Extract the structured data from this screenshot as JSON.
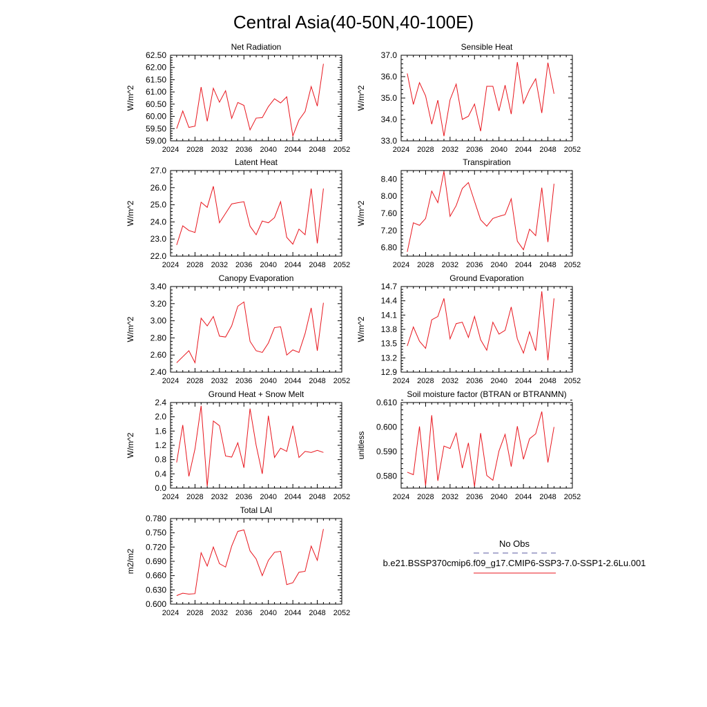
{
  "figure": {
    "title": "Central Asia(40-50N,40-100E)"
  },
  "legend": {
    "obs_label": "No Obs",
    "obs_color": "#5a5aa0",
    "case_label": "b.e21.BSSP370cmip6.f09_g17.CMIP6-SSP3-7.0-SSP1-2.6Lu.001",
    "case_color": "#e8141c"
  },
  "chart_data": [
    {
      "type": "line",
      "title": "Net Radiation",
      "ylabel": "W/m^2",
      "xlim": [
        2024,
        2052
      ],
      "xticks": [
        2024,
        2028,
        2032,
        2036,
        2040,
        2044,
        2048,
        2052
      ],
      "ylim": [
        59.0,
        62.5
      ],
      "yticks": [
        "59.00",
        "59.50",
        "60.00",
        "60.50",
        "61.00",
        "61.50",
        "62.00",
        "62.50"
      ],
      "x": [
        2025,
        2026,
        2027,
        2028,
        2029,
        2030,
        2031,
        2032,
        2033,
        2034,
        2035,
        2036,
        2037,
        2038,
        2039,
        2040,
        2041,
        2042,
        2043,
        2044,
        2045,
        2046,
        2047,
        2048,
        2049
      ],
      "series": [
        {
          "color": "#e8141c",
          "values": [
            59.5,
            60.22,
            59.55,
            59.6,
            61.2,
            59.8,
            61.15,
            60.58,
            61.05,
            59.92,
            60.57,
            60.45,
            59.45,
            59.93,
            59.95,
            60.4,
            60.72,
            60.55,
            60.8,
            59.2,
            59.85,
            60.2,
            61.22,
            60.42,
            62.15
          ]
        }
      ]
    },
    {
      "type": "line",
      "title": "Sensible Heat",
      "ylabel": "W/m^2",
      "xlim": [
        2024,
        2052
      ],
      "xticks": [
        2024,
        2028,
        2032,
        2036,
        2040,
        2044,
        2048,
        2052
      ],
      "ylim": [
        33.0,
        37.0
      ],
      "yticks": [
        "33.0",
        "34.0",
        "35.0",
        "36.0",
        "37.0"
      ],
      "x": [
        2025,
        2026,
        2027,
        2028,
        2029,
        2030,
        2031,
        2032,
        2033,
        2034,
        2035,
        2036,
        2037,
        2038,
        2039,
        2040,
        2041,
        2042,
        2043,
        2044,
        2045,
        2046,
        2047,
        2048,
        2049
      ],
      "series": [
        {
          "color": "#e8141c",
          "values": [
            36.15,
            34.7,
            35.72,
            35.1,
            33.78,
            34.9,
            33.22,
            34.92,
            35.65,
            34.0,
            34.15,
            34.72,
            33.45,
            35.55,
            35.55,
            34.4,
            35.6,
            34.25,
            36.68,
            34.75,
            35.4,
            35.9,
            34.3,
            36.65,
            35.2
          ]
        }
      ]
    },
    {
      "type": "line",
      "title": "Latent Heat",
      "ylabel": "W/m^2",
      "xlim": [
        2024,
        2052
      ],
      "xticks": [
        2024,
        2028,
        2032,
        2036,
        2040,
        2044,
        2048,
        2052
      ],
      "ylim": [
        22.0,
        27.0
      ],
      "yticks": [
        "22.0",
        "23.0",
        "24.0",
        "25.0",
        "26.0",
        "27.0"
      ],
      "x": [
        2025,
        2026,
        2027,
        2028,
        2029,
        2030,
        2031,
        2032,
        2033,
        2034,
        2035,
        2036,
        2037,
        2038,
        2039,
        2040,
        2041,
        2042,
        2043,
        2044,
        2045,
        2046,
        2047,
        2048,
        2049
      ],
      "series": [
        {
          "color": "#e8141c",
          "values": [
            22.65,
            23.77,
            23.5,
            23.38,
            25.15,
            24.85,
            26.08,
            23.95,
            24.5,
            25.05,
            25.12,
            25.18,
            23.75,
            23.25,
            24.05,
            23.95,
            24.25,
            25.18,
            23.1,
            22.7,
            23.58,
            23.25,
            25.95,
            22.75,
            25.95
          ]
        }
      ]
    },
    {
      "type": "line",
      "title": "Transpiration",
      "ylabel": "W/m^2",
      "xlim": [
        2024,
        2052
      ],
      "xticks": [
        2024,
        2028,
        2032,
        2036,
        2040,
        2044,
        2048,
        2052
      ],
      "ylim": [
        6.6,
        8.6
      ],
      "yticks": [
        "6.80",
        "7.20",
        "7.60",
        "8.00",
        "8.40"
      ],
      "x": [
        2025,
        2026,
        2027,
        2028,
        2029,
        2030,
        2031,
        2032,
        2033,
        2034,
        2035,
        2036,
        2037,
        2038,
        2039,
        2040,
        2041,
        2042,
        2043,
        2044,
        2045,
        2046,
        2047,
        2048,
        2049
      ],
      "series": [
        {
          "color": "#e8141c",
          "values": [
            6.7,
            7.38,
            7.32,
            7.48,
            8.12,
            7.85,
            8.58,
            7.53,
            7.78,
            8.18,
            8.32,
            7.88,
            7.45,
            7.3,
            7.48,
            7.53,
            7.57,
            7.94,
            6.95,
            6.75,
            7.23,
            7.08,
            8.2,
            6.93,
            8.29
          ]
        }
      ]
    },
    {
      "type": "line",
      "title": "Canopy Evaporation",
      "ylabel": "W/m^2",
      "xlim": [
        2024,
        2052
      ],
      "xticks": [
        2024,
        2028,
        2032,
        2036,
        2040,
        2044,
        2048,
        2052
      ],
      "ylim": [
        2.4,
        3.4
      ],
      "yticks": [
        "2.40",
        "2.60",
        "2.80",
        "3.00",
        "3.20",
        "3.40"
      ],
      "x": [
        2025,
        2026,
        2027,
        2028,
        2029,
        2030,
        2031,
        2032,
        2033,
        2034,
        2035,
        2036,
        2037,
        2038,
        2039,
        2040,
        2041,
        2042,
        2043,
        2044,
        2045,
        2046,
        2047,
        2048,
        2049
      ],
      "series": [
        {
          "color": "#e8141c",
          "values": [
            2.51,
            2.58,
            2.65,
            2.51,
            3.03,
            2.94,
            3.05,
            2.82,
            2.81,
            2.94,
            3.17,
            3.22,
            2.76,
            2.65,
            2.63,
            2.74,
            2.92,
            2.93,
            2.6,
            2.66,
            2.63,
            2.85,
            3.15,
            2.65,
            3.21
          ]
        }
      ]
    },
    {
      "type": "line",
      "title": "Ground Evaporation",
      "ylabel": "W/m^2",
      "xlim": [
        2024,
        2052
      ],
      "xticks": [
        2024,
        2028,
        2032,
        2036,
        2040,
        2044,
        2048,
        2052
      ],
      "ylim": [
        12.9,
        14.7
      ],
      "yticks": [
        "12.9",
        "13.2",
        "13.5",
        "13.8",
        "14.1",
        "14.4",
        "14.7"
      ],
      "x": [
        2025,
        2026,
        2027,
        2028,
        2029,
        2030,
        2031,
        2032,
        2033,
        2034,
        2035,
        2036,
        2037,
        2038,
        2039,
        2040,
        2041,
        2042,
        2043,
        2044,
        2045,
        2046,
        2047,
        2048,
        2049
      ],
      "series": [
        {
          "color": "#e8141c",
          "values": [
            13.45,
            13.85,
            13.55,
            13.4,
            14.0,
            14.07,
            14.45,
            13.6,
            13.92,
            13.95,
            13.63,
            14.07,
            13.58,
            13.36,
            13.95,
            13.7,
            13.78,
            14.27,
            13.6,
            13.3,
            13.75,
            13.35,
            14.6,
            13.15,
            14.45
          ]
        }
      ]
    },
    {
      "type": "line",
      "title": "Ground Heat + Snow Melt",
      "ylabel": "W/m^2",
      "xlim": [
        2024,
        2052
      ],
      "xticks": [
        2024,
        2028,
        2032,
        2036,
        2040,
        2044,
        2048,
        2052
      ],
      "ylim": [
        0.0,
        2.4
      ],
      "yticks": [
        "0.0",
        "0.4",
        "0.8",
        "1.2",
        "1.6",
        "2.0",
        "2.4"
      ],
      "x": [
        2025,
        2026,
        2027,
        2028,
        2029,
        2030,
        2031,
        2032,
        2033,
        2034,
        2035,
        2036,
        2037,
        2038,
        2039,
        2040,
        2041,
        2042,
        2043,
        2044,
        2045,
        2046,
        2047,
        2048,
        2049
      ],
      "series": [
        {
          "color": "#e8141c",
          "values": [
            0.72,
            1.77,
            0.33,
            1.1,
            2.31,
            0.05,
            1.88,
            1.75,
            0.9,
            0.87,
            1.27,
            0.57,
            2.23,
            1.2,
            0.4,
            2.03,
            0.86,
            1.12,
            1.03,
            1.75,
            0.86,
            1.03,
            1.0,
            1.06,
            1.0
          ]
        }
      ]
    },
    {
      "type": "line",
      "title": "Soil moisture factor (BTRAN or BTRANMN)",
      "ylabel": "unitless",
      "xlim": [
        2024,
        2052
      ],
      "xticks": [
        2024,
        2028,
        2032,
        2036,
        2040,
        2044,
        2048,
        2052
      ],
      "ylim": [
        0.575,
        0.61
      ],
      "yticks": [
        "0.580",
        "0.590",
        "0.600",
        "0.610"
      ],
      "x": [
        2025,
        2026,
        2027,
        2028,
        2029,
        2030,
        2031,
        2032,
        2033,
        2034,
        2035,
        2036,
        2037,
        2038,
        2039,
        2040,
        2041,
        2042,
        2043,
        2044,
        2045,
        2046,
        2047,
        2048,
        2049
      ],
      "series": [
        {
          "color": "#e8141c",
          "values": [
            0.5815,
            0.5805,
            0.6002,
            0.576,
            0.6048,
            0.578,
            0.5922,
            0.5912,
            0.5975,
            0.5832,
            0.5935,
            0.5757,
            0.5975,
            0.5802,
            0.5782,
            0.5902,
            0.597,
            0.5838,
            0.6003,
            0.5868,
            0.5952,
            0.5972,
            0.6063,
            0.5855,
            0.6
          ]
        }
      ]
    },
    {
      "type": "line",
      "title": "Total LAI",
      "ylabel": "m2/m2",
      "xlim": [
        2024,
        2052
      ],
      "xticks": [
        2024,
        2028,
        2032,
        2036,
        2040,
        2044,
        2048,
        2052
      ],
      "ylim": [
        0.6,
        0.78
      ],
      "yticks": [
        "0.600",
        "0.630",
        "0.660",
        "0.690",
        "0.720",
        "0.750",
        "0.780"
      ],
      "x": [
        2025,
        2026,
        2027,
        2028,
        2029,
        2030,
        2031,
        2032,
        2033,
        2034,
        2035,
        2036,
        2037,
        2038,
        2039,
        2040,
        2041,
        2042,
        2043,
        2044,
        2045,
        2046,
        2047,
        2048,
        2049
      ],
      "series": [
        {
          "color": "#e8141c",
          "values": [
            0.618,
            0.623,
            0.621,
            0.622,
            0.708,
            0.68,
            0.72,
            0.685,
            0.678,
            0.722,
            0.753,
            0.756,
            0.712,
            0.695,
            0.66,
            0.692,
            0.709,
            0.711,
            0.641,
            0.645,
            0.667,
            0.669,
            0.722,
            0.692,
            0.758
          ]
        }
      ]
    }
  ]
}
